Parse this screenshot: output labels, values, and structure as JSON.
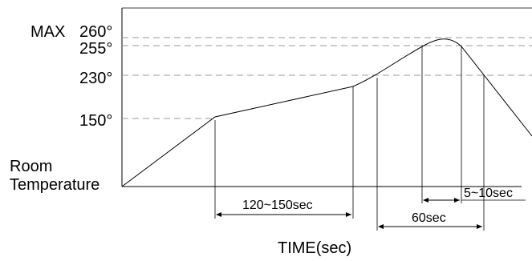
{
  "diagram": {
    "y_labels": {
      "max": "MAX",
      "t260": "260°",
      "t255": "255°",
      "t230": "230°",
      "t150": "150°",
      "room_line1": "Room",
      "room_line2": "Temperature"
    },
    "x_axis_title": "TIME(sec)",
    "intervals": {
      "preheat": "120~150sec",
      "reflow": "60sec",
      "peak": "5~10sec"
    }
  }
}
